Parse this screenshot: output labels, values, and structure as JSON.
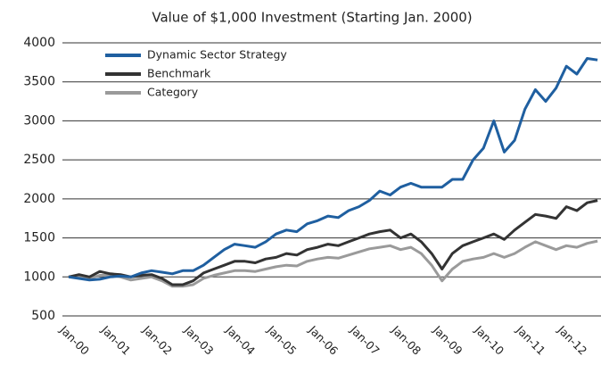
{
  "chart_data": {
    "type": "line",
    "title": "Value of $1,000 Investment (Starting Jan. 2000)",
    "categories": [
      "Jan-00",
      null,
      null,
      null,
      "Jan-01",
      null,
      null,
      null,
      "Jan-02",
      null,
      null,
      null,
      "Jan-03",
      null,
      null,
      null,
      "Jan-04",
      null,
      null,
      null,
      "Jan-05",
      null,
      null,
      null,
      "Jan-06",
      null,
      null,
      null,
      "Jan-07",
      null,
      null,
      null,
      "Jan-08",
      null,
      null,
      null,
      "Jan-09",
      null,
      null,
      null,
      "Jan-10",
      null,
      null,
      null,
      "Jan-11",
      null,
      null,
      null,
      "Jan-12",
      null,
      null,
      null
    ],
    "series": [
      {
        "name": "Dynamic Sector Strategy",
        "color": "#1f5fa0",
        "values": [
          1000,
          980,
          960,
          970,
          1000,
          1010,
          1000,
          1050,
          1080,
          1060,
          1040,
          1080,
          1080,
          1150,
          1250,
          1350,
          1420,
          1400,
          1380,
          1450,
          1550,
          1600,
          1580,
          1680,
          1720,
          1780,
          1760,
          1850,
          1900,
          1980,
          2100,
          2050,
          2150,
          2200,
          2150,
          2150,
          2150,
          2250,
          2250,
          2500,
          2650,
          3000,
          2600,
          2750,
          3150,
          3400,
          3250,
          3420,
          3700,
          3600,
          3800,
          3780
        ]
      },
      {
        "name": "Benchmark",
        "color": "#333333",
        "values": [
          1000,
          1030,
          1000,
          1070,
          1040,
          1030,
          1000,
          1020,
          1030,
          980,
          900,
          900,
          950,
          1050,
          1100,
          1150,
          1200,
          1200,
          1180,
          1230,
          1250,
          1300,
          1280,
          1350,
          1380,
          1420,
          1400,
          1450,
          1500,
          1550,
          1580,
          1600,
          1500,
          1550,
          1450,
          1300,
          1100,
          1300,
          1400,
          1450,
          1500,
          1550,
          1480,
          1600,
          1700,
          1800,
          1780,
          1750,
          1900,
          1850,
          1950,
          1980
        ]
      },
      {
        "name": "Category",
        "color": "#9a9a9a",
        "values": [
          1000,
          1000,
          980,
          1020,
          1020,
          1000,
          960,
          980,
          1000,
          950,
          880,
          880,
          900,
          980,
          1020,
          1050,
          1080,
          1080,
          1070,
          1100,
          1130,
          1150,
          1140,
          1200,
          1230,
          1250,
          1240,
          1280,
          1320,
          1360,
          1380,
          1400,
          1350,
          1380,
          1300,
          1150,
          950,
          1100,
          1200,
          1230,
          1250,
          1300,
          1250,
          1300,
          1380,
          1450,
          1400,
          1350,
          1400,
          1380,
          1430,
          1460
        ]
      }
    ],
    "ylim": [
      500,
      4000
    ],
    "yticks": [
      500,
      1000,
      1500,
      2000,
      2500,
      3000,
      3500,
      4000
    ],
    "grid": true,
    "legend": "top-left"
  }
}
